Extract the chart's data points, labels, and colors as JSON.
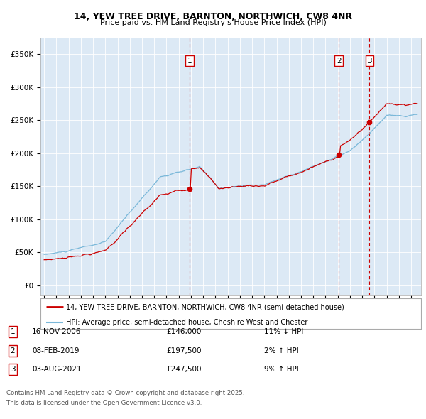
{
  "title1": "14, YEW TREE DRIVE, BARNTON, NORTHWICH, CW8 4NR",
  "title2": "Price paid vs. HM Land Registry's House Price Index (HPI)",
  "plot_bg_color": "#dce9f5",
  "hpi_color": "#7ab8d9",
  "price_color": "#cc0000",
  "transactions": [
    {
      "num": 1,
      "date": "16-NOV-2006",
      "date_x": 2006.88,
      "price": 146000,
      "pct": "11%",
      "dir": "↓"
    },
    {
      "num": 2,
      "date": "08-FEB-2019",
      "date_x": 2019.1,
      "price": 197500,
      "pct": "2%",
      "dir": "↑"
    },
    {
      "num": 3,
      "date": "03-AUG-2021",
      "date_x": 2021.6,
      "price": 247500,
      "pct": "9%",
      "dir": "↑"
    }
  ],
  "footer1": "Contains HM Land Registry data © Crown copyright and database right 2025.",
  "footer2": "This data is licensed under the Open Government Licence v3.0.",
  "legend_line1": "14, YEW TREE DRIVE, BARNTON, NORTHWICH, CW8 4NR (semi-detached house)",
  "legend_line2": "HPI: Average price, semi-detached house, Cheshire West and Chester",
  "yticks": [
    0,
    50000,
    100000,
    150000,
    200000,
    250000,
    300000,
    350000
  ],
  "ylabels": [
    "£0",
    "£50K",
    "£100K",
    "£150K",
    "£200K",
    "£250K",
    "£300K",
    "£350K"
  ],
  "ylim_max": 375000,
  "ylim_min": -15000,
  "xlim_min": 1994.7,
  "xlim_max": 2025.8
}
